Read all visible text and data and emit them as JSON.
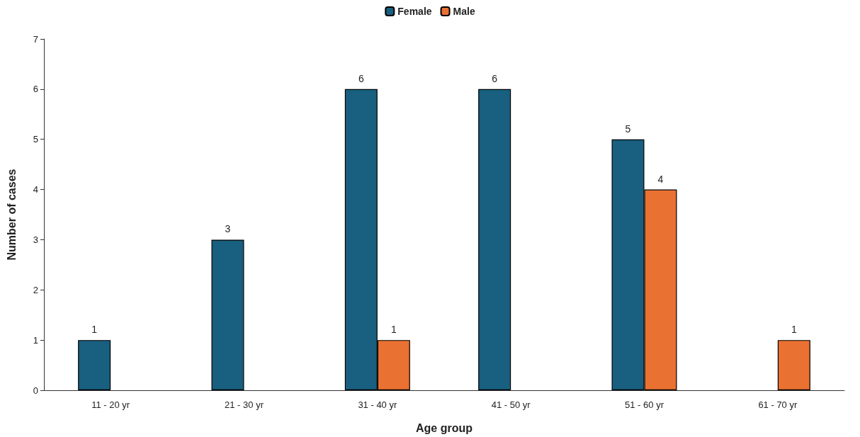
{
  "chart_data": {
    "type": "bar",
    "xlabel": "Age group",
    "ylabel": "Number of cases",
    "categories": [
      "11 - 20 yr",
      "21 - 30 yr",
      "31 - 40 yr",
      "41 - 50 yr",
      "51 - 60 yr",
      "61 - 70 yr"
    ],
    "series": [
      {
        "name": "Female",
        "color": "#195f7f",
        "values": [
          1,
          3,
          6,
          6,
          5,
          null
        ]
      },
      {
        "name": "Male",
        "color": "#e97132",
        "values": [
          null,
          null,
          1,
          null,
          4,
          1
        ]
      }
    ],
    "ylim": [
      0,
      7
    ],
    "yticks": [
      0,
      1,
      2,
      3,
      4,
      5,
      6,
      7
    ],
    "grid": false,
    "legend": "top",
    "data_labels": true
  }
}
